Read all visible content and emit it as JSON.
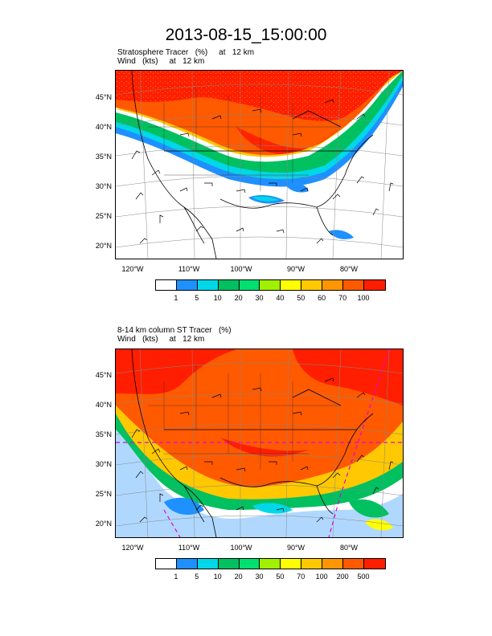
{
  "title": "2013-08-15_15:00:00",
  "panels": [
    {
      "caption_line1": "Stratosphere Tracer   (%)     at   12 km",
      "caption_line2": "Wind   (kts)     at   12 km",
      "lat_labels": [
        "45°N",
        "40°N",
        "35°N",
        "30°N",
        "25°N",
        "20°N"
      ],
      "lon_labels": [
        "120°W",
        "110°W",
        "100°W",
        "90°W",
        "80°W"
      ],
      "colorbar_colors": [
        "#ffffff",
        "#1e90ff",
        "#00d8e8",
        "#00c060",
        "#00e070",
        "#a0f000",
        "#ffff00",
        "#ffc800",
        "#ff9600",
        "#ff5a00",
        "#ff1e00"
      ],
      "colorbar_labels": [
        "1",
        "5",
        "10",
        "20",
        "30",
        "40",
        "50",
        "60",
        "70",
        "100"
      ]
    },
    {
      "caption_line1": "8-14 km column ST Tracer   (%)",
      "caption_line2": "Wind   (kts)     at   12 km",
      "lat_labels": [
        "45°N",
        "40°N",
        "35°N",
        "30°N",
        "25°N",
        "20°N"
      ],
      "lon_labels": [
        "120°W",
        "110°W",
        "100°W",
        "90°W",
        "80°W"
      ],
      "colorbar_colors": [
        "#ffffff",
        "#1e90ff",
        "#00d8e8",
        "#00c060",
        "#00e070",
        "#a0f000",
        "#ffff00",
        "#ffc800",
        "#ff9600",
        "#ff5a00",
        "#ff1e00"
      ],
      "colorbar_labels": [
        "1",
        "5",
        "10",
        "20",
        "30",
        "50",
        "70",
        "100",
        "200",
        "500"
      ]
    }
  ]
}
